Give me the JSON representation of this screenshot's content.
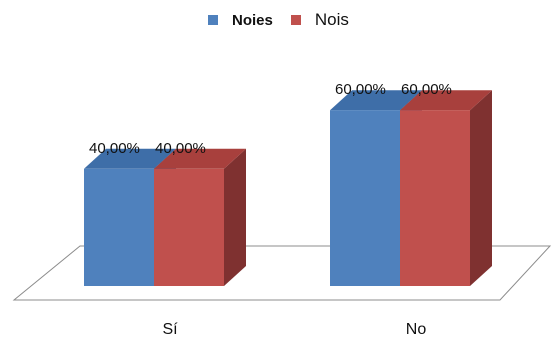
{
  "chart_data": {
    "type": "bar",
    "style": "3d-clustered-column",
    "categories": [
      "Sí",
      "No"
    ],
    "series": [
      {
        "name": "Noies",
        "values": [
          40.0,
          60.0
        ],
        "labels": [
          "40,00%",
          "60,00%"
        ],
        "color": "#4F81BD",
        "top_color": "#3E6EA8",
        "side_color": "#2F5B8E"
      },
      {
        "name": "Nois",
        "values": [
          40.0,
          60.0
        ],
        "labels": [
          "40,00%",
          "60,00%"
        ],
        "color": "#C0504D",
        "top_color": "#A8403D",
        "side_color": "#7F3130"
      }
    ],
    "ylim": [
      0,
      100
    ],
    "legend_position": "top",
    "grid": false,
    "title": "",
    "xlabel": "",
    "ylabel": ""
  }
}
